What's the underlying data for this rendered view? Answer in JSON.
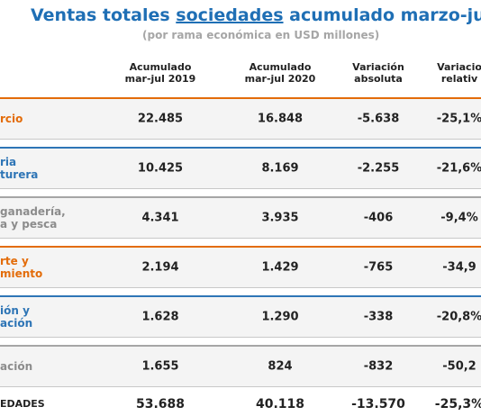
{
  "header": {
    "title_before": "Ventas totales ",
    "title_underlined": "sociedades",
    "title_after": " acumulado marzo-jul",
    "subtitle": "(por rama económica en USD millones)"
  },
  "table": {
    "columns": [
      [
        "Acumulado",
        "mar-jul 2019"
      ],
      [
        "Acumulado",
        "mar-jul 2020"
      ],
      [
        "Variación",
        "absoluta"
      ],
      [
        "Variacio",
        "relativ"
      ]
    ],
    "rows": [
      {
        "label": [
          "rcio"
        ],
        "cells": [
          "22.485",
          "16.848",
          "-5.638",
          "-25,1%"
        ]
      },
      {
        "label": [
          "ria",
          "turera"
        ],
        "cells": [
          "10.425",
          "8.169",
          "-2.255",
          "-21,6%"
        ]
      },
      {
        "label": [
          "ganadería,",
          "a y pesca"
        ],
        "cells": [
          "4.341",
          "3.935",
          "-406",
          "-9,4%"
        ]
      },
      {
        "label": [
          "rte y",
          "miento"
        ],
        "cells": [
          "2.194",
          "1.429",
          "-765",
          "-34,9"
        ]
      },
      {
        "label": [
          "ión y",
          "ación"
        ],
        "cells": [
          "1.628",
          "1.290",
          "-338",
          "-20,8%"
        ]
      },
      {
        "label": [
          "ación"
        ],
        "cells": [
          "1.655",
          "824",
          "-832",
          "-50,2"
        ]
      }
    ],
    "total": {
      "label": [
        "EDADES"
      ],
      "cells": [
        "53.688",
        "40.118",
        "-13.570",
        "-25,3%"
      ]
    }
  }
}
